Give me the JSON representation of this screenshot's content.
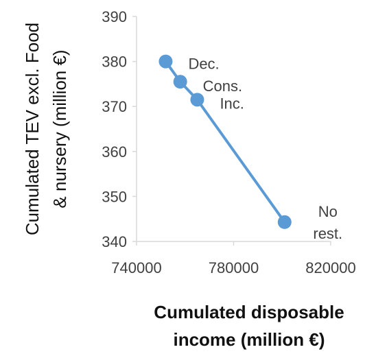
{
  "chart_data": {
    "type": "scatter",
    "xlabel": [
      "Cumulated disposable",
      "income (million €)"
    ],
    "ylabel": [
      "Cumulated TEV excl. Food",
      "& nursery (million €)"
    ],
    "xlim": [
      740000,
      820000
    ],
    "ylim": [
      340,
      390
    ],
    "xticks": [
      740000,
      780000,
      820000
    ],
    "yticks": [
      340,
      350,
      360,
      370,
      380,
      390
    ],
    "grid": false,
    "line_color": "#5b9bd5",
    "points": [
      {
        "x": 752000,
        "y": 380,
        "label": [
          "Dec."
        ]
      },
      {
        "x": 758000,
        "y": 375.5,
        "label": [
          "Cons."
        ]
      },
      {
        "x": 765000,
        "y": 371.5,
        "label": [
          "Inc."
        ]
      },
      {
        "x": 801000,
        "y": 344.3,
        "label": [
          "No",
          "rest."
        ]
      }
    ]
  }
}
